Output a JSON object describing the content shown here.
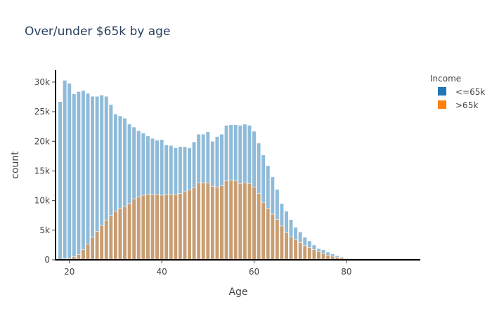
{
  "chart_data": {
    "type": "bar",
    "barmode": "overlay",
    "title": "Over/under $65k by age",
    "xlabel": "Age",
    "ylabel": "count",
    "xlim": [
      17,
      96
    ],
    "ylim": [
      0,
      32000
    ],
    "x_ticks": [
      20,
      40,
      60,
      80
    ],
    "x_tick_labels": [
      "20",
      "40",
      "60",
      "80"
    ],
    "y_ticks": [
      0,
      5000,
      10000,
      15000,
      20000,
      25000,
      30000
    ],
    "y_tick_labels": [
      "0",
      "5k",
      "10k",
      "15k",
      "20k",
      "25k",
      "30k"
    ],
    "legend": {
      "title": "Income",
      "position": "top-right"
    },
    "x": [
      18,
      19,
      20,
      21,
      22,
      23,
      24,
      25,
      26,
      27,
      28,
      29,
      30,
      31,
      32,
      33,
      34,
      35,
      36,
      37,
      38,
      39,
      40,
      41,
      42,
      43,
      44,
      45,
      46,
      47,
      48,
      49,
      50,
      51,
      52,
      53,
      54,
      55,
      56,
      57,
      58,
      59,
      60,
      61,
      62,
      63,
      64,
      65,
      66,
      67,
      68,
      69,
      70,
      71,
      72,
      73,
      74,
      75,
      76,
      77,
      78,
      79,
      80,
      81,
      82,
      83,
      84,
      85,
      86,
      87,
      88,
      89,
      90,
      91,
      92,
      93,
      94,
      95
    ],
    "series": [
      {
        "name": "<=65k",
        "color": "#1f77b4",
        "values": [
          26700,
          30300,
          29800,
          28000,
          28400,
          28600,
          28100,
          27600,
          27600,
          27800,
          27600,
          26200,
          24600,
          24300,
          23900,
          22900,
          22400,
          21800,
          21400,
          20900,
          20500,
          20200,
          20300,
          19400,
          19300,
          18900,
          19100,
          19100,
          18900,
          19900,
          21200,
          21200,
          21600,
          20000,
          20800,
          21200,
          22700,
          22800,
          22800,
          22700,
          22900,
          22700,
          21700,
          19700,
          17700,
          15900,
          14000,
          11900,
          9500,
          8200,
          6800,
          5500,
          4700,
          3800,
          3200,
          2500,
          1900,
          1700,
          1300,
          1000,
          700,
          450,
          300,
          200,
          130,
          80,
          50,
          30,
          20,
          10,
          8,
          6,
          5,
          4,
          3,
          2,
          2,
          1
        ]
      },
      {
        "name": ">65k",
        "color": "#ff7f0e",
        "values": [
          50,
          150,
          250,
          500,
          900,
          1700,
          2700,
          3800,
          4800,
          5800,
          6700,
          7500,
          8200,
          8700,
          9000,
          9500,
          10300,
          10600,
          10900,
          11100,
          11000,
          11100,
          10900,
          11000,
          11100,
          11000,
          11200,
          11500,
          11800,
          12200,
          13000,
          13000,
          13000,
          12400,
          12300,
          12500,
          13300,
          13500,
          13300,
          12900,
          13000,
          12900,
          12300,
          11200,
          9700,
          8700,
          7700,
          6800,
          5700,
          4600,
          3900,
          3400,
          2900,
          2400,
          2100,
          1700,
          1400,
          1100,
          800,
          600,
          450,
          300,
          200,
          140,
          90,
          60,
          40,
          25,
          15,
          10,
          6,
          5,
          4,
          3,
          2,
          2,
          1,
          1
        ]
      }
    ]
  }
}
